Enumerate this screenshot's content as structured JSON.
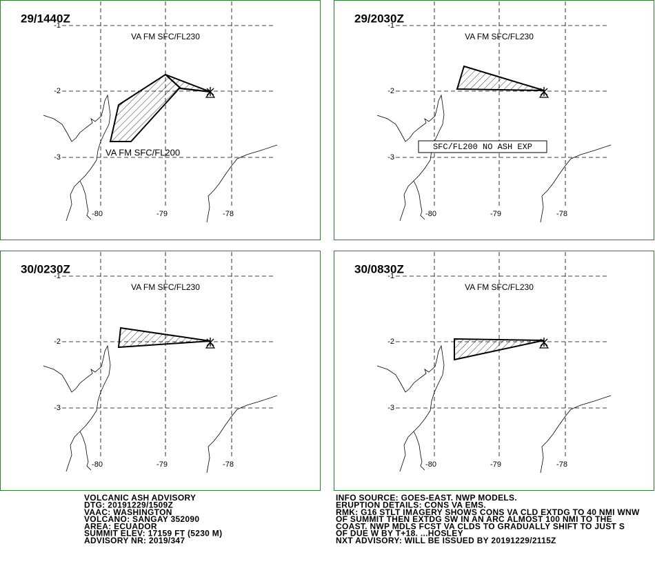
{
  "panels": [
    {
      "time": "29/1440Z",
      "level": "VA FM SFC/FL230",
      "note": "VA FM SFC/FL200"
    },
    {
      "time": "29/2030Z",
      "level": "VA FM SFC/FL230",
      "note": "SFC/FL200 NO ASH EXP"
    },
    {
      "time": "30/0230Z",
      "level": "VA FM SFC/FL230"
    },
    {
      "time": "30/0830Z",
      "level": "VA FM SFC/FL230"
    }
  ],
  "grid_labels": {
    "lat": [
      "-1",
      "-2",
      "-3"
    ],
    "lon": [
      "-80",
      "-79",
      "-78"
    ]
  },
  "footer": {
    "left": [
      "VOLCANIC ASH ADVISORY",
      "DTG: 20191229/1509Z",
      "VAAC: WASHINGTON",
      "VOLCANO: SANGAY 352090",
      "AREA: ECUADOR",
      "SUMMIT ELEV: 17159 FT (5230 M)",
      "ADVISORY NR: 2019/347"
    ],
    "right": [
      "INFO SOURCE: GOES-EAST. NWP MODELS.",
      "ERUPTION DETAILS: CONS VA EMS.",
      "RMK: G16 STLT IMAGERY SHOWS CONS VA CLD EXTDG TO 40 NMI WNW",
      "OF SUMMIT THEN EXTDG SW IN AN ARC ALMOST 100 NMI TO THE",
      "COAST. NWP MDLS FCST VA CLDS TO GRADUALLY SHIFT TO JUST S",
      "OF DUE W BY T+18. ...HOSLEY",
      "NXT ADVISORY: WILL BE ISSUED BY 20191229/2115Z"
    ]
  }
}
